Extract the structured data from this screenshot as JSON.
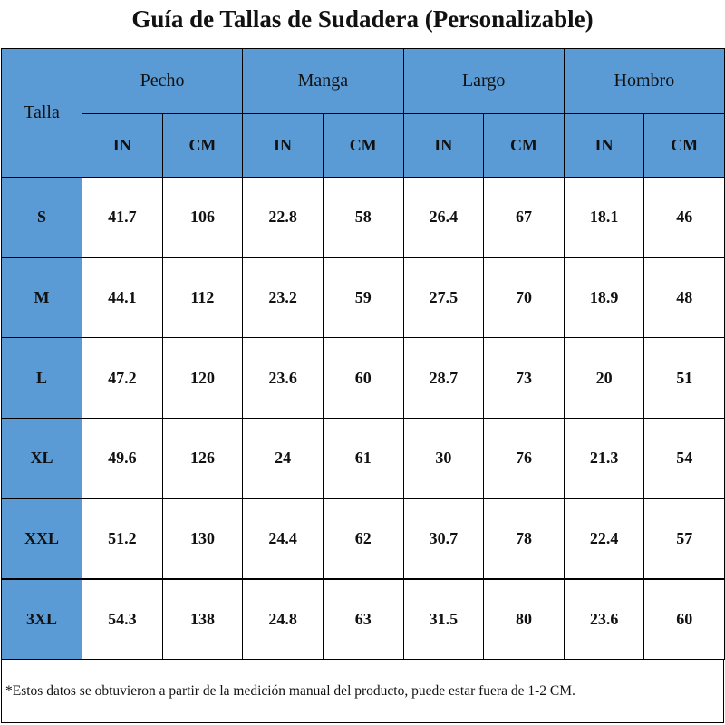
{
  "title": "Guía de Tallas de Sudadera (Personalizable)",
  "table": {
    "corner": "Talla",
    "groups": [
      "Pecho",
      "Manga",
      "Largo",
      "Hombro"
    ],
    "units": [
      "IN",
      "CM",
      "IN",
      "CM",
      "IN",
      "CM",
      "IN",
      "CM"
    ],
    "rows": [
      [
        "S",
        "41.7",
        "106",
        "22.8",
        "58",
        "26.4",
        "67",
        "18.1",
        "46"
      ],
      [
        "M",
        "44.1",
        "112",
        "23.2",
        "59",
        "27.5",
        "70",
        "18.9",
        "48"
      ],
      [
        "L",
        "47.2",
        "120",
        "23.6",
        "60",
        "28.7",
        "73",
        "20",
        "51"
      ],
      [
        "XL",
        "49.6",
        "126",
        "24",
        "61",
        "30",
        "76",
        "21.3",
        "54"
      ],
      [
        "XXL",
        "51.2",
        "130",
        "24.4",
        "62",
        "30.7",
        "78",
        "22.4",
        "57"
      ],
      [
        "3XL",
        "54.3",
        "138",
        "24.8",
        "63",
        "31.5",
        "80",
        "23.6",
        "60"
      ]
    ]
  },
  "footnote": "*Estos datos se obtuvieron a partir de la medición manual del producto, puede estar fuera de 1-2 CM."
}
